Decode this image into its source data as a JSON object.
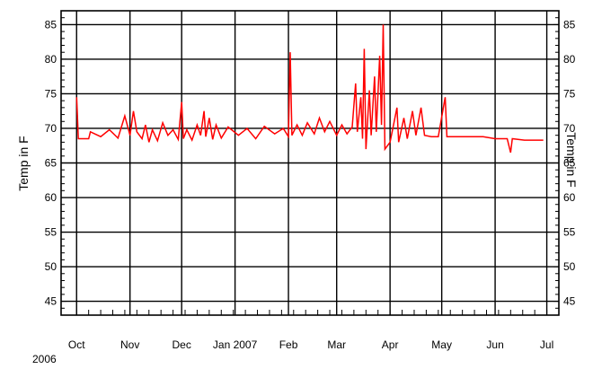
{
  "chart_data": {
    "type": "line",
    "title": "",
    "xlabel": "",
    "ylabel": "Temp in F",
    "ylabel_right": "Temp in F",
    "ylim": [
      43,
      87
    ],
    "yticks": [
      45,
      50,
      55,
      60,
      65,
      70,
      75,
      80,
      85
    ],
    "xlim": [
      "2006-09-22",
      "2007-07-08"
    ],
    "xticks": [
      {
        "date": "2006-10-01",
        "label": "Oct"
      },
      {
        "date": "2006-11-01",
        "label": "Nov"
      },
      {
        "date": "2006-12-01",
        "label": "Dec"
      },
      {
        "date": "2007-01-01",
        "label": "Jan 2007"
      },
      {
        "date": "2007-02-01",
        "label": "Feb"
      },
      {
        "date": "2007-03-01",
        "label": "Mar"
      },
      {
        "date": "2007-04-01",
        "label": "Apr"
      },
      {
        "date": "2007-05-01",
        "label": "May"
      },
      {
        "date": "2007-06-01",
        "label": "Jun"
      },
      {
        "date": "2007-07-01",
        "label": "Jul"
      }
    ],
    "year_label": "2006",
    "grid": true,
    "series": [
      {
        "color": "#ff0000",
        "points": [
          [
            "2006-10-01",
            74.5
          ],
          [
            "2006-10-02",
            68.5
          ],
          [
            "2006-10-08",
            68.5
          ],
          [
            "2006-10-09",
            69.5
          ],
          [
            "2006-10-15",
            68.8
          ],
          [
            "2006-10-20",
            69.8
          ],
          [
            "2006-10-25",
            68.6
          ],
          [
            "2006-10-29",
            71.8
          ],
          [
            "2006-11-01",
            69.0
          ],
          [
            "2006-11-03",
            72.5
          ],
          [
            "2006-11-05",
            69.5
          ],
          [
            "2006-11-08",
            68.5
          ],
          [
            "2006-11-10",
            70.5
          ],
          [
            "2006-11-12",
            68.0
          ],
          [
            "2006-11-14",
            69.8
          ],
          [
            "2006-11-17",
            68.2
          ],
          [
            "2006-11-20",
            70.8
          ],
          [
            "2006-11-23",
            69.0
          ],
          [
            "2006-11-26",
            69.8
          ],
          [
            "2006-11-29",
            68.4
          ],
          [
            "2006-12-01",
            73.8
          ],
          [
            "2006-12-02",
            68.5
          ],
          [
            "2006-12-04",
            69.8
          ],
          [
            "2006-12-07",
            68.3
          ],
          [
            "2006-12-10",
            70.5
          ],
          [
            "2006-12-12",
            69.0
          ],
          [
            "2006-12-14",
            72.5
          ],
          [
            "2006-12-15",
            68.8
          ],
          [
            "2006-12-17",
            71.5
          ],
          [
            "2006-12-19",
            68.4
          ],
          [
            "2006-12-21",
            70.5
          ],
          [
            "2006-12-24",
            68.6
          ],
          [
            "2006-12-28",
            70.2
          ],
          [
            "2007-01-03",
            69.0
          ],
          [
            "2007-01-08",
            70.0
          ],
          [
            "2007-01-13",
            68.5
          ],
          [
            "2007-01-18",
            70.3
          ],
          [
            "2007-01-24",
            69.2
          ],
          [
            "2007-01-29",
            70.0
          ],
          [
            "2007-02-01",
            68.8
          ],
          [
            "2007-02-02",
            81.0
          ],
          [
            "2007-02-03",
            69.0
          ],
          [
            "2007-02-06",
            70.5
          ],
          [
            "2007-02-09",
            69.0
          ],
          [
            "2007-02-12",
            70.8
          ],
          [
            "2007-02-16",
            69.2
          ],
          [
            "2007-02-19",
            71.5
          ],
          [
            "2007-02-22",
            69.5
          ],
          [
            "2007-02-25",
            71.0
          ],
          [
            "2007-03-01",
            69.0
          ],
          [
            "2007-03-04",
            70.5
          ],
          [
            "2007-03-07",
            69.2
          ],
          [
            "2007-03-10",
            70.2
          ],
          [
            "2007-03-12",
            76.5
          ],
          [
            "2007-03-13",
            69.5
          ],
          [
            "2007-03-15",
            74.5
          ],
          [
            "2007-03-16",
            68.5
          ],
          [
            "2007-03-17",
            81.5
          ],
          [
            "2007-03-18",
            67.0
          ],
          [
            "2007-03-20",
            75.5
          ],
          [
            "2007-03-21",
            69.0
          ],
          [
            "2007-03-23",
            77.5
          ],
          [
            "2007-03-24",
            69.5
          ],
          [
            "2007-03-26",
            80.5
          ],
          [
            "2007-03-27",
            70.5
          ],
          [
            "2007-03-28",
            85.0
          ],
          [
            "2007-03-29",
            67.0
          ],
          [
            "2007-04-01",
            68.0
          ],
          [
            "2007-04-03",
            70.5
          ],
          [
            "2007-04-05",
            73.0
          ],
          [
            "2007-04-06",
            68.0
          ],
          [
            "2007-04-09",
            71.5
          ],
          [
            "2007-04-11",
            68.5
          ],
          [
            "2007-04-14",
            72.5
          ],
          [
            "2007-04-16",
            69.0
          ],
          [
            "2007-04-19",
            73.0
          ],
          [
            "2007-04-21",
            69.0
          ],
          [
            "2007-04-25",
            68.8
          ],
          [
            "2007-04-29",
            68.8
          ],
          [
            "2007-05-03",
            74.5
          ],
          [
            "2007-05-04",
            68.8
          ],
          [
            "2007-05-10",
            68.8
          ],
          [
            "2007-05-18",
            68.8
          ],
          [
            "2007-05-25",
            68.8
          ],
          [
            "2007-06-01",
            68.5
          ],
          [
            "2007-06-08",
            68.5
          ],
          [
            "2007-06-10",
            66.5
          ],
          [
            "2007-06-11",
            68.5
          ],
          [
            "2007-06-18",
            68.3
          ],
          [
            "2007-06-25",
            68.3
          ],
          [
            "2007-06-29",
            68.3
          ]
        ]
      }
    ]
  }
}
